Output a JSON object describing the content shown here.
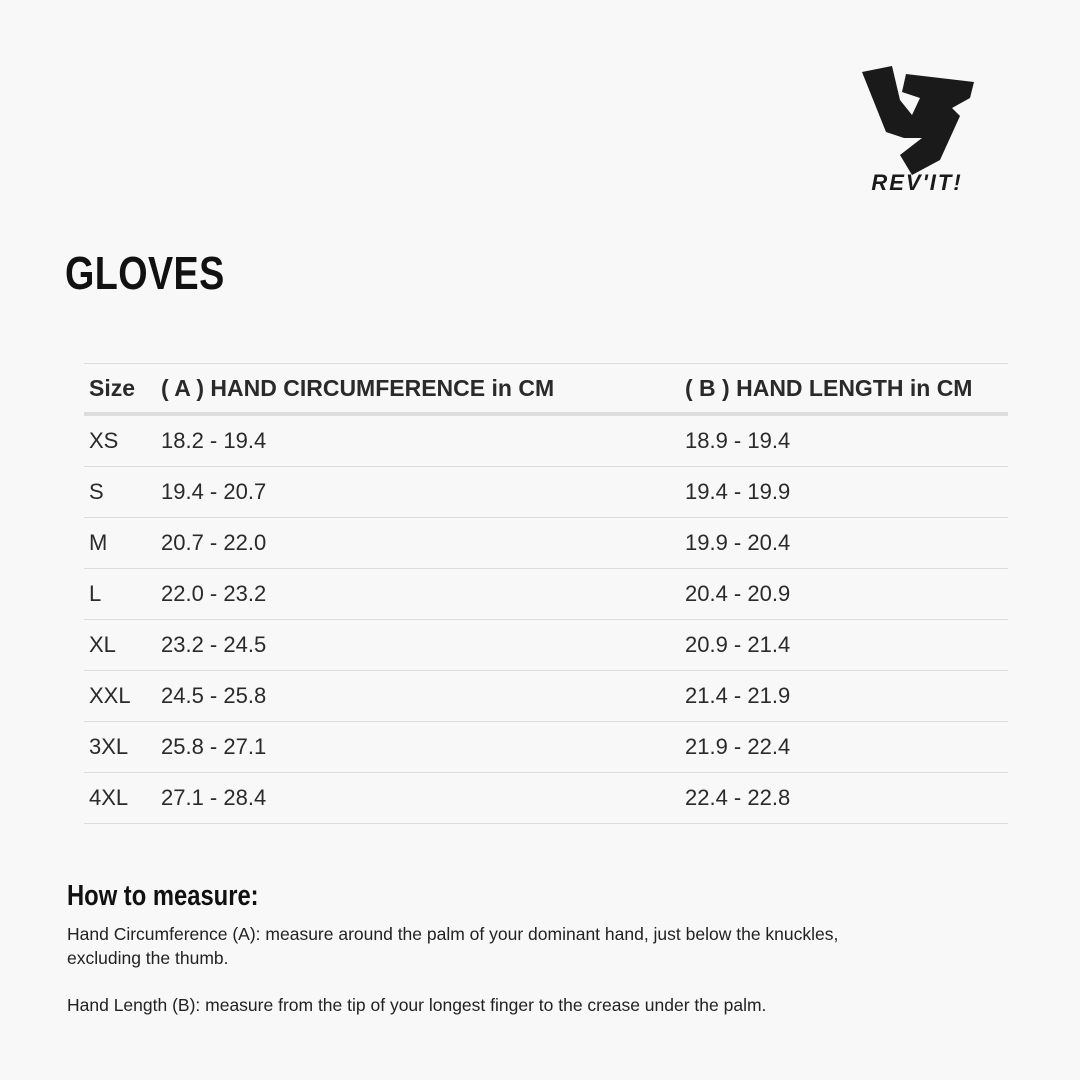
{
  "brand": {
    "logo_text": "REV'IT!"
  },
  "title": "GLOVES",
  "table": {
    "headers": [
      "Size",
      "( A ) HAND CIRCUMFERENCE in CM",
      "( B ) HAND LENGTH in CM"
    ],
    "rows": [
      [
        "XS",
        "18.2 - 19.4",
        "18.9 - 19.4"
      ],
      [
        "S",
        "19.4 - 20.7",
        "19.4 - 19.9"
      ],
      [
        "M",
        "20.7 - 22.0",
        "19.9 - 20.4"
      ],
      [
        "L",
        "22.0 - 23.2",
        "20.4 - 20.9"
      ],
      [
        "XL",
        "23.2 - 24.5",
        "20.9 - 21.4"
      ],
      [
        "XXL",
        "24.5 - 25.8",
        "21.4 - 21.9"
      ],
      [
        "3XL",
        "25.8 - 27.1",
        "21.9 - 22.4"
      ],
      [
        "4XL",
        "27.1 - 28.4",
        "22.4 - 22.8"
      ]
    ]
  },
  "how_to": {
    "heading": "How to measure:",
    "circumference": "Hand Circumference (A): measure around the palm of your dominant hand, just below the knuckles, excluding the thumb.",
    "length": "Hand Length (B): measure from the tip of your longest finger to the crease under the palm."
  }
}
